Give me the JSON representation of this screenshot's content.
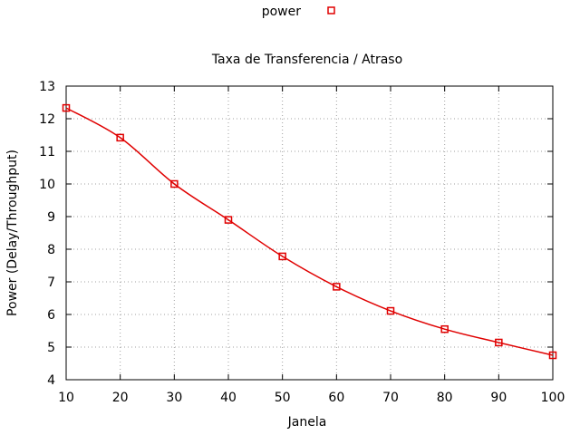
{
  "chart_data": {
    "type": "line",
    "title": "Taxa de Transferencia / Atraso",
    "xlabel": "Janela",
    "ylabel": "Power (Delay/Throughput)",
    "xlim": [
      10,
      100
    ],
    "ylim": [
      4,
      13
    ],
    "x_ticks": [
      "10",
      "20",
      "30",
      "40",
      "50",
      "60",
      "70",
      "80",
      "90",
      "100"
    ],
    "y_ticks": [
      "4",
      "5",
      "6",
      "7",
      "8",
      "9",
      "10",
      "11",
      "12",
      "13"
    ],
    "grid": true,
    "legend_position": "top-center",
    "series": [
      {
        "name": "power",
        "color": "#e00000",
        "marker": "square",
        "x": [
          10,
          20,
          30,
          40,
          50,
          60,
          70,
          80,
          90,
          100
        ],
        "y": [
          12.33,
          11.42,
          10.0,
          8.9,
          7.78,
          6.85,
          6.11,
          5.55,
          5.14,
          4.75
        ]
      }
    ]
  }
}
